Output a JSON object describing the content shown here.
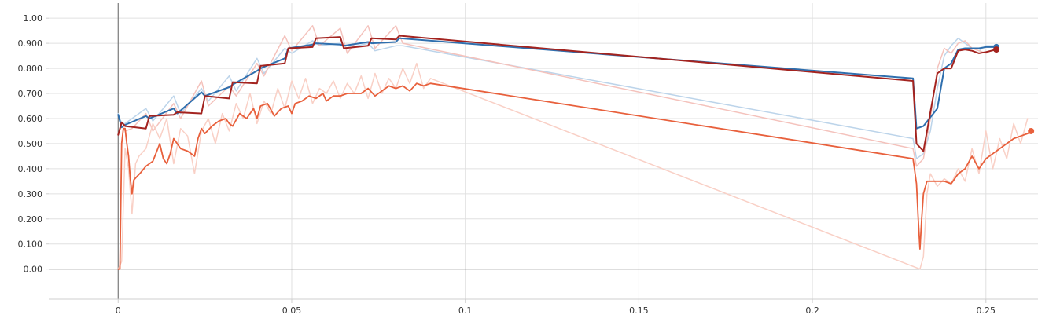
{
  "chart_data": {
    "type": "line",
    "grid": true,
    "legend": "none",
    "xlim": [
      -0.02,
      0.265
    ],
    "ylim": [
      -0.12,
      1.06
    ],
    "x_ticks": [
      {
        "value": 0,
        "label": "0"
      },
      {
        "value": 0.05,
        "label": "0.05"
      },
      {
        "value": 0.1,
        "label": "0.1"
      },
      {
        "value": 0.15,
        "label": "0.15"
      },
      {
        "value": 0.2,
        "label": "0.2"
      },
      {
        "value": 0.25,
        "label": "0.25"
      }
    ],
    "y_ticks": [
      {
        "value": 0.0,
        "label": "0.00"
      },
      {
        "value": 0.1,
        "label": "0.100"
      },
      {
        "value": 0.2,
        "label": "0.200"
      },
      {
        "value": 0.3,
        "label": "0.300"
      },
      {
        "value": 0.4,
        "label": "0.400"
      },
      {
        "value": 0.5,
        "label": "0.500"
      },
      {
        "value": 0.6,
        "label": "0.600"
      },
      {
        "value": 0.7,
        "label": "0.700"
      },
      {
        "value": 0.8,
        "label": "0.800"
      },
      {
        "value": 0.9,
        "label": "0.900"
      },
      {
        "value": 1.0,
        "label": "1.00"
      }
    ],
    "series": [
      {
        "color": "#bcd4ea",
        "width": 1.5,
        "x": [
          0.0,
          0.001,
          0.002,
          0.004,
          0.008,
          0.01,
          0.016,
          0.018,
          0.024,
          0.026,
          0.032,
          0.034,
          0.04,
          0.042,
          0.048,
          0.05,
          0.056,
          0.058,
          0.064,
          0.066,
          0.072,
          0.074,
          0.08,
          0.082,
          0.229,
          0.23,
          0.232,
          0.234,
          0.236,
          0.238,
          0.24,
          0.242,
          0.244,
          0.246,
          0.248,
          0.25,
          0.253
        ],
        "y": [
          0.62,
          0.58,
          0.58,
          0.6,
          0.64,
          0.59,
          0.69,
          0.62,
          0.72,
          0.67,
          0.77,
          0.71,
          0.84,
          0.78,
          0.88,
          0.86,
          0.91,
          0.89,
          0.9,
          0.88,
          0.9,
          0.87,
          0.89,
          0.89,
          0.52,
          0.44,
          0.46,
          0.55,
          0.72,
          0.85,
          0.89,
          0.92,
          0.9,
          0.88,
          0.87,
          0.89,
          0.89
        ]
      },
      {
        "color": "#f4c2bc",
        "width": 1.5,
        "x": [
          0.0,
          0.001,
          0.002,
          0.004,
          0.008,
          0.01,
          0.016,
          0.018,
          0.024,
          0.026,
          0.032,
          0.034,
          0.04,
          0.042,
          0.048,
          0.05,
          0.056,
          0.058,
          0.064,
          0.066,
          0.072,
          0.074,
          0.08,
          0.082,
          0.229,
          0.23,
          0.232,
          0.234,
          0.236,
          0.238,
          0.24,
          0.242,
          0.244,
          0.246,
          0.248,
          0.25,
          0.253
        ],
        "y": [
          0.54,
          0.57,
          0.55,
          0.56,
          0.62,
          0.55,
          0.66,
          0.6,
          0.75,
          0.65,
          0.73,
          0.69,
          0.82,
          0.77,
          0.93,
          0.87,
          0.97,
          0.89,
          0.96,
          0.86,
          0.97,
          0.88,
          0.97,
          0.9,
          0.48,
          0.41,
          0.44,
          0.6,
          0.8,
          0.88,
          0.86,
          0.9,
          0.91,
          0.88,
          0.87,
          0.86,
          0.88
        ]
      },
      {
        "color": "#f9d0c6",
        "width": 1.5,
        "x": [
          0.0,
          0.001,
          0.002,
          0.003,
          0.004,
          0.005,
          0.006,
          0.008,
          0.01,
          0.012,
          0.014,
          0.016,
          0.018,
          0.02,
          0.022,
          0.024,
          0.026,
          0.028,
          0.03,
          0.032,
          0.034,
          0.036,
          0.038,
          0.04,
          0.042,
          0.044,
          0.046,
          0.048,
          0.05,
          0.052,
          0.054,
          0.056,
          0.058,
          0.06,
          0.062,
          0.064,
          0.066,
          0.068,
          0.07,
          0.072,
          0.074,
          0.076,
          0.078,
          0.08,
          0.082,
          0.084,
          0.086,
          0.088,
          0.09,
          0.231,
          0.232,
          0.233,
          0.234,
          0.236,
          0.238,
          0.24,
          0.242,
          0.244,
          0.246,
          0.248,
          0.25,
          0.252,
          0.254,
          0.256,
          0.258,
          0.26,
          0.262
        ],
        "y": [
          0.0,
          0.03,
          0.48,
          0.4,
          0.22,
          0.42,
          0.45,
          0.48,
          0.58,
          0.52,
          0.6,
          0.42,
          0.56,
          0.53,
          0.38,
          0.55,
          0.6,
          0.5,
          0.62,
          0.55,
          0.66,
          0.6,
          0.7,
          0.58,
          0.67,
          0.62,
          0.72,
          0.64,
          0.75,
          0.68,
          0.76,
          0.66,
          0.72,
          0.7,
          0.75,
          0.68,
          0.74,
          0.7,
          0.77,
          0.68,
          0.78,
          0.7,
          0.76,
          0.72,
          0.8,
          0.74,
          0.82,
          0.72,
          0.76,
          0.0,
          0.05,
          0.3,
          0.38,
          0.33,
          0.36,
          0.34,
          0.4,
          0.35,
          0.48,
          0.38,
          0.55,
          0.4,
          0.52,
          0.44,
          0.58,
          0.5,
          0.6
        ]
      },
      {
        "color": "#2f6fae",
        "width": 2,
        "x": [
          0.0,
          0.001,
          0.002,
          0.008,
          0.009,
          0.016,
          0.017,
          0.024,
          0.025,
          0.032,
          0.033,
          0.04,
          0.041,
          0.048,
          0.049,
          0.056,
          0.057,
          0.064,
          0.065,
          0.072,
          0.073,
          0.08,
          0.081,
          0.229,
          0.23,
          0.232,
          0.236,
          0.238,
          0.24,
          0.242,
          0.244,
          0.246,
          0.248,
          0.25,
          0.253
        ],
        "y": [
          0.615,
          0.565,
          0.575,
          0.61,
          0.6,
          0.64,
          0.62,
          0.705,
          0.69,
          0.725,
          0.735,
          0.79,
          0.8,
          0.84,
          0.88,
          0.895,
          0.9,
          0.895,
          0.89,
          0.905,
          0.9,
          0.905,
          0.92,
          0.76,
          0.56,
          0.57,
          0.64,
          0.8,
          0.82,
          0.875,
          0.88,
          0.88,
          0.88,
          0.885,
          0.885
        ]
      },
      {
        "color": "#a3231f",
        "width": 2,
        "x": [
          0.0,
          0.001,
          0.002,
          0.008,
          0.009,
          0.016,
          0.017,
          0.024,
          0.025,
          0.032,
          0.033,
          0.04,
          0.041,
          0.048,
          0.049,
          0.056,
          0.057,
          0.064,
          0.065,
          0.072,
          0.073,
          0.08,
          0.081,
          0.229,
          0.23,
          0.232,
          0.236,
          0.238,
          0.24,
          0.242,
          0.244,
          0.246,
          0.248,
          0.25,
          0.253
        ],
        "y": [
          0.535,
          0.585,
          0.57,
          0.56,
          0.61,
          0.615,
          0.625,
          0.62,
          0.69,
          0.68,
          0.745,
          0.74,
          0.81,
          0.82,
          0.88,
          0.885,
          0.92,
          0.925,
          0.88,
          0.89,
          0.92,
          0.915,
          0.93,
          0.75,
          0.5,
          0.47,
          0.78,
          0.8,
          0.8,
          0.87,
          0.875,
          0.87,
          0.86,
          0.865,
          0.875
        ]
      },
      {
        "color": "#e8603c",
        "width": 1.8,
        "x": [
          0.0,
          0.0005,
          0.001,
          0.0015,
          0.002,
          0.0025,
          0.003,
          0.0035,
          0.004,
          0.0045,
          0.0055,
          0.0065,
          0.008,
          0.01,
          0.012,
          0.013,
          0.014,
          0.015,
          0.016,
          0.017,
          0.018,
          0.02,
          0.022,
          0.023,
          0.024,
          0.025,
          0.027,
          0.029,
          0.031,
          0.032,
          0.033,
          0.035,
          0.037,
          0.039,
          0.04,
          0.041,
          0.043,
          0.045,
          0.047,
          0.049,
          0.05,
          0.051,
          0.053,
          0.055,
          0.057,
          0.059,
          0.06,
          0.062,
          0.064,
          0.066,
          0.068,
          0.07,
          0.072,
          0.074,
          0.076,
          0.078,
          0.08,
          0.082,
          0.084,
          0.086,
          0.088,
          0.09,
          0.229,
          0.23,
          0.2305,
          0.231,
          0.2315,
          0.232,
          0.233,
          0.234,
          0.235,
          0.236,
          0.238,
          0.24,
          0.242,
          0.244,
          0.246,
          0.248,
          0.25,
          0.252,
          0.254,
          0.256,
          0.258,
          0.26,
          0.262,
          0.263
        ],
        "y": [
          0.0,
          0.0,
          0.5,
          0.56,
          0.56,
          0.5,
          0.45,
          0.36,
          0.3,
          0.355,
          0.37,
          0.385,
          0.41,
          0.43,
          0.5,
          0.44,
          0.42,
          0.46,
          0.52,
          0.5,
          0.48,
          0.47,
          0.45,
          0.52,
          0.56,
          0.54,
          0.57,
          0.59,
          0.6,
          0.58,
          0.57,
          0.62,
          0.6,
          0.64,
          0.6,
          0.65,
          0.66,
          0.61,
          0.64,
          0.65,
          0.62,
          0.66,
          0.67,
          0.69,
          0.68,
          0.7,
          0.67,
          0.69,
          0.69,
          0.7,
          0.7,
          0.7,
          0.72,
          0.69,
          0.71,
          0.73,
          0.72,
          0.73,
          0.71,
          0.74,
          0.73,
          0.74,
          0.44,
          0.34,
          0.2,
          0.08,
          0.2,
          0.3,
          0.35,
          0.35,
          0.35,
          0.35,
          0.35,
          0.34,
          0.38,
          0.4,
          0.45,
          0.4,
          0.44,
          0.46,
          0.48,
          0.5,
          0.52,
          0.53,
          0.54,
          0.55
        ]
      }
    ],
    "end_markers": [
      {
        "x": 0.253,
        "y": 0.885,
        "color": "#2f6fae"
      },
      {
        "x": 0.253,
        "y": 0.875,
        "color": "#a3231f"
      },
      {
        "x": 0.263,
        "y": 0.55,
        "color": "#e8603c"
      }
    ]
  }
}
